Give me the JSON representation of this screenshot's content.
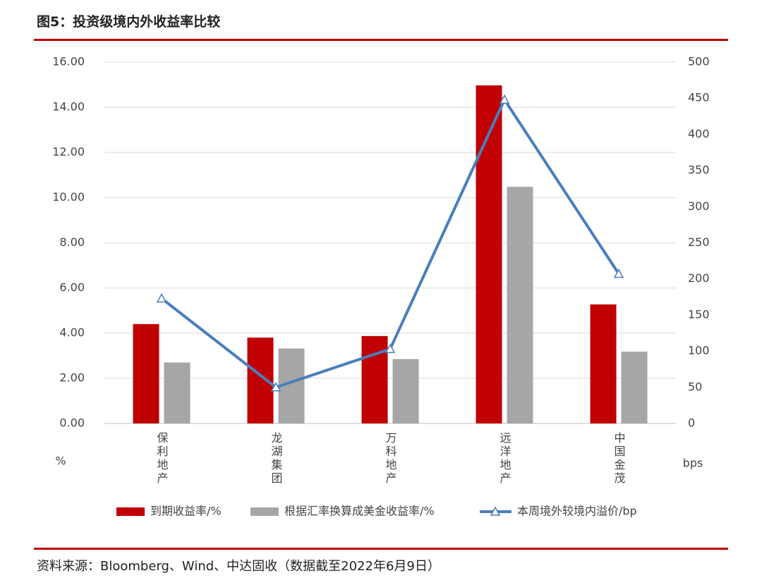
{
  "chart_data": {
    "type": "bar",
    "title": "图5：投资级境内外收益率比较",
    "source": "资料来源：Bloomberg、Wind、中达固收（数据截至2022年6月9日）",
    "y_label": "%",
    "y2_label": "bps",
    "categories": [
      "保利地产",
      "龙湖集团",
      "万科地产",
      "远洋地产",
      "中国金茂"
    ],
    "series": [
      {
        "name": "到期收益率/%",
        "type": "bar",
        "color": "#c00000",
        "values": [
          4.4,
          3.8,
          3.87,
          14.97,
          5.27
        ]
      },
      {
        "name": "根据汇率换算成美金收益率/%",
        "type": "bar",
        "color": "#a6a6a6",
        "values": [
          2.7,
          3.32,
          2.85,
          10.48,
          3.18
        ]
      },
      {
        "name": "本周境外较境内溢价/bp",
        "type": "line",
        "axis": "y2",
        "color": "#4a7ebb",
        "values": [
          173,
          50,
          103,
          448,
          207
        ]
      }
    ],
    "ylim": [
      0,
      16
    ],
    "yticks": [
      {
        "value": 0,
        "label": "0.00"
      },
      {
        "value": 2,
        "label": "2.00"
      },
      {
        "value": 4,
        "label": "4.00"
      },
      {
        "value": 6,
        "label": "6.00"
      },
      {
        "value": 8,
        "label": "8.00"
      },
      {
        "value": 10,
        "label": "10.00"
      },
      {
        "value": 12,
        "label": "12.00"
      },
      {
        "value": 14,
        "label": "14.00"
      },
      {
        "value": 16,
        "label": "16.00"
      }
    ],
    "y2lim": [
      0,
      500
    ],
    "y2ticks": [
      0,
      50,
      100,
      150,
      200,
      250,
      300,
      350,
      400,
      450,
      500
    ],
    "grid": true
  }
}
